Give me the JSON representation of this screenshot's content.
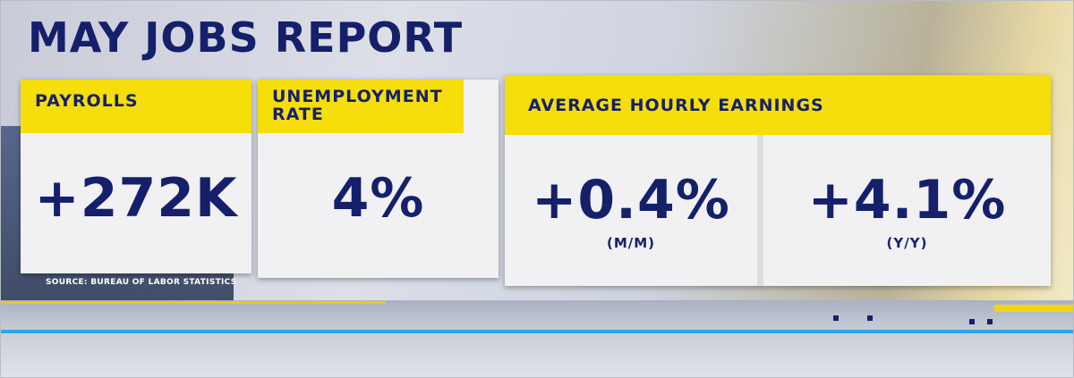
{
  "title": "MAY JOBS REPORT",
  "cards": [
    {
      "label": "PAYROLLS",
      "value": "+272K"
    },
    {
      "label": "UNEMPLOYMENT RATE",
      "value": "4%"
    },
    {
      "label": "AVERAGE HOURLY EARNINGS",
      "values": [
        {
          "value": "+0.4%",
          "note": "(M/M)"
        },
        {
          "value": "+4.1%",
          "note": "(Y/Y)"
        }
      ]
    }
  ],
  "source": "SOURCE: BUREAU OF LABOR STATISTICS"
}
